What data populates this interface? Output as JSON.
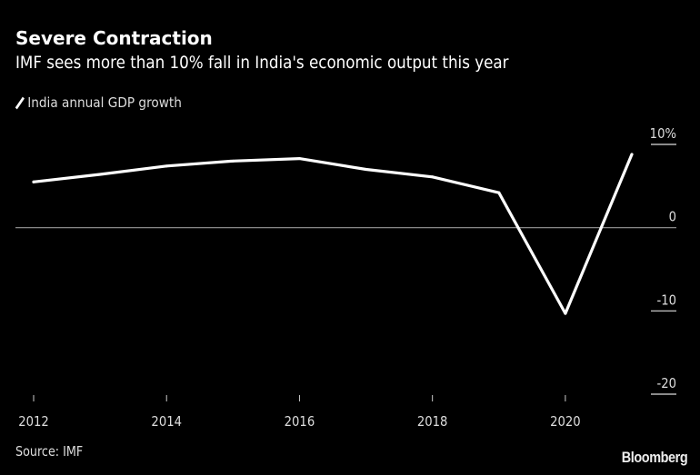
{
  "header": {
    "title": "Severe Contraction",
    "subtitle": "IMF sees more than 10% fall in India's economic output this year"
  },
  "legend": {
    "label": "India annual GDP growth",
    "icon": "diagonal-line-icon"
  },
  "footer": {
    "source": "Source: IMF",
    "brand": "Bloomberg"
  },
  "colors": {
    "background": "#000000",
    "line": "#ffffff",
    "zero_line": "#999999",
    "text": "#dddddd"
  },
  "chart_data": {
    "type": "line",
    "title": "Severe Contraction",
    "subtitle": "IMF sees more than 10% fall in India's economic output this year",
    "xlabel": "",
    "ylabel": "",
    "x": [
      2012,
      2013,
      2014,
      2015,
      2016,
      2017,
      2018,
      2019,
      2020,
      2021
    ],
    "series": [
      {
        "name": "India annual GDP growth",
        "values": [
          5.5,
          6.4,
          7.4,
          8.0,
          8.3,
          7.0,
          6.1,
          4.2,
          -10.3,
          8.8
        ]
      }
    ],
    "x_ticks": [
      "2012",
      "2014",
      "2016",
      "2018",
      "2020"
    ],
    "y_ticks": [
      {
        "value": 10,
        "label": "10%"
      },
      {
        "value": 0,
        "label": "0"
      },
      {
        "value": -10,
        "label": "-10"
      },
      {
        "value": -20,
        "label": "-20"
      }
    ],
    "xlim": [
      2012,
      2021
    ],
    "ylim": [
      -20,
      10
    ],
    "y_axis_position": "right",
    "grid": false,
    "zero_line": true,
    "legend_position": "top-left"
  }
}
